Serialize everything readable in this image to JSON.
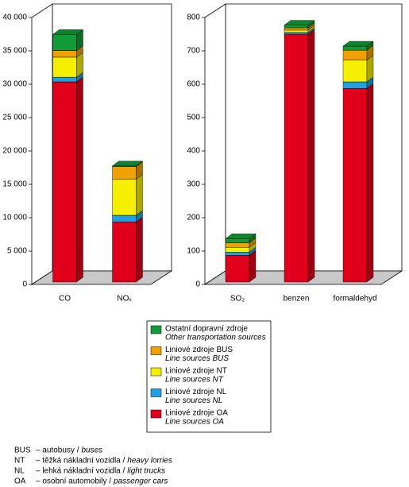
{
  "legend": [
    {
      "name": "Liniové zdroje OA",
      "name_en": "Line sources OA",
      "color": "#e0001b"
    },
    {
      "name": "Liniové zdroje NL",
      "name_en": "Line sources NL",
      "color": "#1fa0e0"
    },
    {
      "name": "Liniové zdroje NT",
      "name_en": "Line sources NT",
      "color": "#f5f000"
    },
    {
      "name": "Liniové zdroje BUS",
      "name_en": "Line sources BUS",
      "color": "#f0a000"
    },
    {
      "name": "Ostatní dopravní zdroje",
      "name_en": "Other transportation sources",
      "color": "#119a38"
    }
  ],
  "chart_data": [
    {
      "type": "bar",
      "stacked": true,
      "categories": [
        "CO",
        "NOₓ"
      ],
      "series": [
        {
          "values": [
            30000,
            9000
          ]
        },
        {
          "values": [
            700,
            1000
          ]
        },
        {
          "values": [
            3000,
            5400
          ]
        },
        {
          "values": [
            1000,
            1900
          ]
        },
        {
          "values": [
            2400,
            100
          ]
        }
      ],
      "ylim": [
        0,
        40000
      ],
      "yticks": [
        0,
        {
          "value": 5000,
          "label": "5 000"
        },
        {
          "value": 10000,
          "label": "10 000"
        },
        {
          "value": 15000,
          "label": "15 000"
        },
        {
          "value": 20000,
          "label": "20 000"
        },
        {
          "value": 25000,
          "label": "25 000"
        },
        {
          "value": 30000,
          "label": "30 000"
        },
        {
          "value": 35000,
          "label": "35 000"
        },
        {
          "value": 40000,
          "label": "40 000"
        }
      ]
    },
    {
      "type": "bar",
      "stacked": true,
      "categories": [
        "SO₂",
        "benzen",
        "formaldehyd"
      ],
      "series": [
        {
          "values": [
            80,
            743,
            580
          ]
        },
        {
          "values": [
            10,
            5,
            20
          ]
        },
        {
          "values": [
            14,
            7,
            65
          ]
        },
        {
          "values": [
            14,
            7,
            30
          ]
        },
        {
          "values": [
            12,
            8,
            12
          ]
        }
      ],
      "ylim": [
        0,
        800
      ],
      "yticks": [
        0,
        100,
        200,
        300,
        400,
        500,
        600,
        700,
        800
      ]
    }
  ],
  "notes": [
    {
      "abbr": "BUS",
      "text": "– autobusy /",
      "en": "buses"
    },
    {
      "abbr": "NT",
      "text": "– těžká nákladní vozidla /",
      "en": "heavy lorries"
    },
    {
      "abbr": "NL",
      "text": "– lehká nákladní vozidla /",
      "en": "light trucks"
    },
    {
      "abbr": "OA",
      "text": "– osobní automobily /",
      "en": "passenger cars"
    }
  ]
}
